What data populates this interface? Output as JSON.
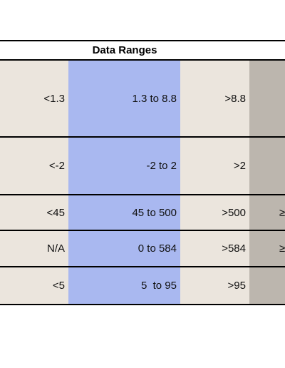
{
  "header": {
    "title": "Data Ranges"
  },
  "table": {
    "rows": [
      [
        "<1.3",
        "1.3 to 8.8",
        ">8.8",
        ""
      ],
      [
        "<-2",
        "-2 to 2",
        ">2",
        ""
      ],
      [
        "<45",
        "45 to 500",
        ">500",
        "≥"
      ],
      [
        "N/A",
        "0 to 584",
        ">584",
        "≥"
      ],
      [
        "<5",
        "5  to 95",
        ">95",
        ""
      ]
    ]
  }
}
